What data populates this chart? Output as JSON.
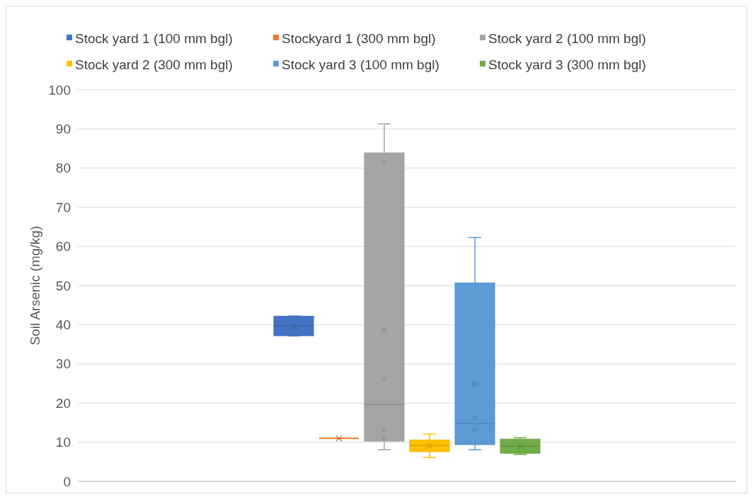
{
  "chart_data": {
    "type": "box",
    "ylabel": "Soil Arsenic (mg/kg)",
    "categories": [
      null
    ],
    "ylim": [
      0,
      100
    ],
    "yticks": [
      0,
      10,
      20,
      30,
      40,
      50,
      60,
      70,
      80,
      90,
      100
    ],
    "grid": "y",
    "legend": "top",
    "series": [
      {
        "name": "Stock yard 1 (100 mm bgl)",
        "color": "#4472c4",
        "boxes": [
          {
            "low": 37.2,
            "q1": 37.2,
            "median": 39.7,
            "q3": 42.2,
            "high": 42.2,
            "mean": 39.7
          }
        ]
      },
      {
        "name": "Stockyard 1 (300 mm bgl)",
        "color": "#ed7d31",
        "boxes": [
          {
            "low": 11,
            "q1": 11,
            "median": 11,
            "q3": 11,
            "high": 11,
            "mean": 11
          }
        ]
      },
      {
        "name": "Stock yard 2 (100 mm bgl)",
        "color": "#a5a5a5",
        "boxes": [
          {
            "low": 8.1,
            "q1": 10.3,
            "median": 19.7,
            "q3": 83.9,
            "high": 91.3,
            "mean": 38.6,
            "outliers": [
              81.4,
              26.2,
              13.2,
              11.2
            ]
          }
        ]
      },
      {
        "name": "Stock yard 2 (300 mm bgl)",
        "color": "#ffc000",
        "boxes": [
          {
            "low": 6.1,
            "q1": 7.6,
            "median": 9.2,
            "q3": 10.6,
            "high": 12.1,
            "mean": 9.1
          }
        ]
      },
      {
        "name": "Stock yard 3 (100 mm bgl)",
        "color": "#5b9bd5",
        "boxes": [
          {
            "low": 8.1,
            "q1": 9.4,
            "median": 14.8,
            "q3": 50.7,
            "high": 62.3,
            "mean": 24.9,
            "outliers": [
              16.1,
              13.2
            ]
          }
        ]
      },
      {
        "name": "Stock yard 3 (300 mm bgl)",
        "color": "#70ad47",
        "boxes": [
          {
            "low": 6.9,
            "q1": 7.2,
            "median": 9,
            "q3": 10.8,
            "high": 11.2,
            "mean": 9
          }
        ]
      }
    ]
  }
}
